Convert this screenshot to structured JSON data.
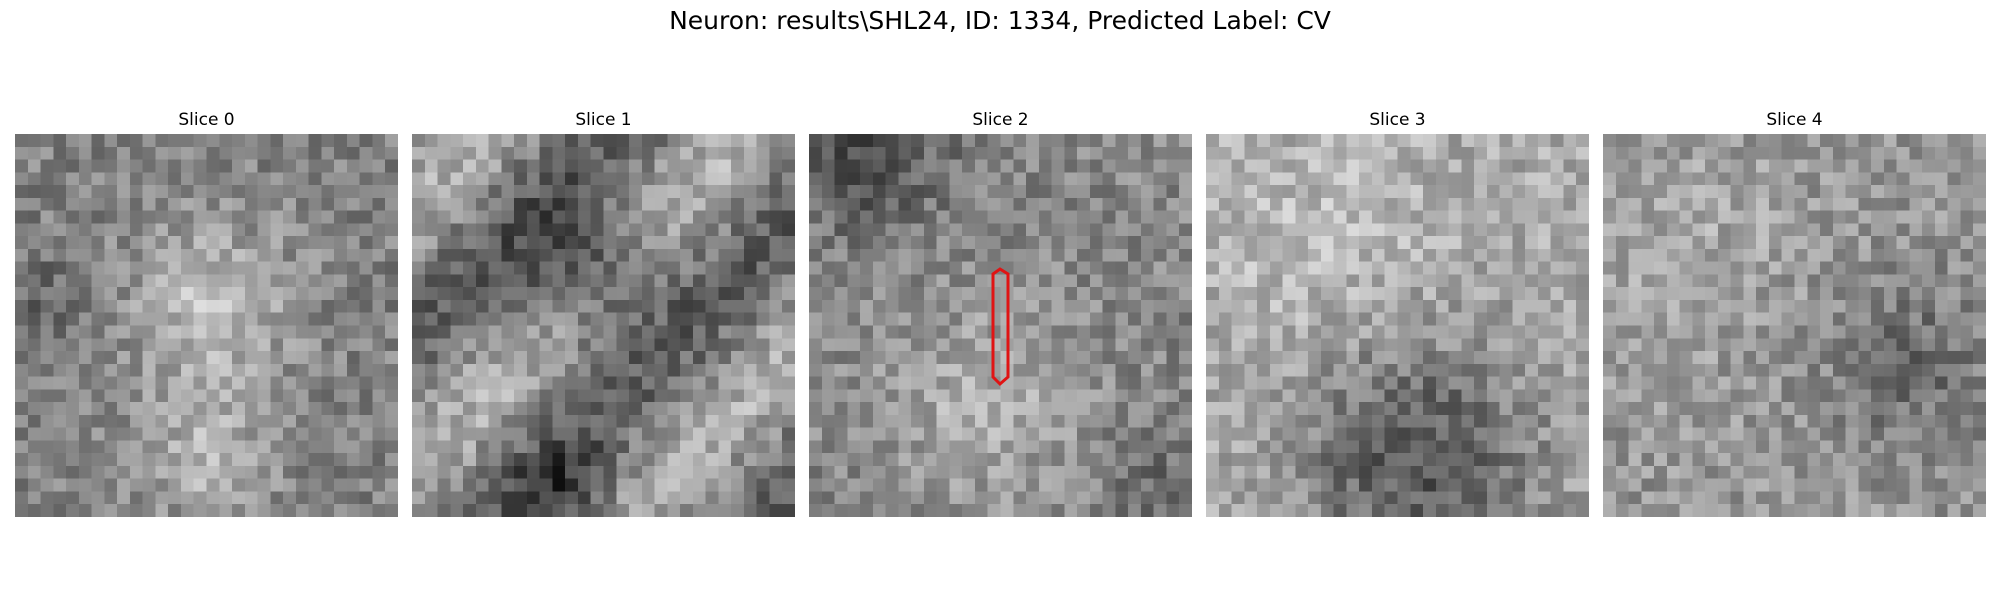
{
  "figure": {
    "title": "Neuron: results\\SHL24, ID: 1334, Predicted Label: CV"
  },
  "panels": [
    {
      "title": "Slice 0"
    },
    {
      "title": "Slice 1"
    },
    {
      "title": "Slice 2"
    },
    {
      "title": "Slice 3"
    },
    {
      "title": "Slice 4"
    }
  ],
  "overlay": {
    "panel_index": 2,
    "shape": "elongated hexagon outline",
    "color": "#e01414"
  },
  "image": {
    "colormap": "grayscale",
    "grid_cells": 30
  }
}
